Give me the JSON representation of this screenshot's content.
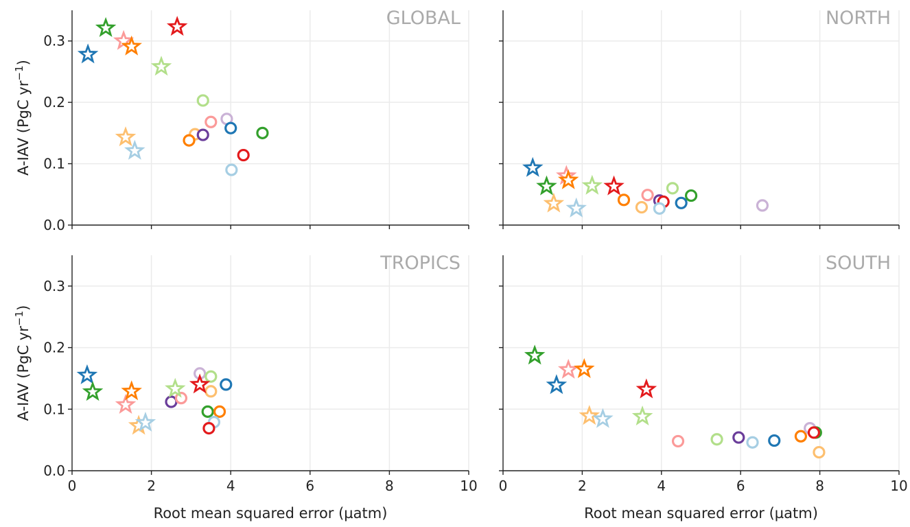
{
  "chart_data": {
    "type": "scatter",
    "xlabel": "Root mean squared error (µatm)",
    "ylabel_main": "A-IAV (PgC yr",
    "ylabel_sup": "−1",
    "ylabel_end": ")",
    "xlim": [
      0,
      10
    ],
    "ylim": [
      0,
      0.35
    ],
    "xticks": [
      "0",
      "2",
      "4",
      "6",
      "8",
      "10"
    ],
    "yticks": [
      "0.0",
      "0.1",
      "0.2",
      "0.3"
    ],
    "grid": true,
    "colors": [
      "#1f77b4",
      "#33a02c",
      "#fb9a99",
      "#ff7f00",
      "#b2df8a",
      "#e31a1c",
      "#fdbf6f",
      "#a6cee3",
      "#6a3d9a",
      "#cab2d6"
    ],
    "panels": [
      {
        "title": "GLOBAL",
        "stars": [
          {
            "x": 0.4,
            "y": 0.278,
            "c": 0
          },
          {
            "x": 0.85,
            "y": 0.321,
            "c": 1
          },
          {
            "x": 1.3,
            "y": 0.3,
            "c": 2
          },
          {
            "x": 1.5,
            "y": 0.291,
            "c": 3
          },
          {
            "x": 2.25,
            "y": 0.258,
            "c": 4
          },
          {
            "x": 2.65,
            "y": 0.323,
            "c": 5
          },
          {
            "x": 1.35,
            "y": 0.143,
            "c": 6
          },
          {
            "x": 1.58,
            "y": 0.121,
            "c": 7
          }
        ],
        "circles": [
          {
            "x": 3.3,
            "y": 0.203,
            "c": 4
          },
          {
            "x": 3.9,
            "y": 0.173,
            "c": 9
          },
          {
            "x": 3.5,
            "y": 0.168,
            "c": 2
          },
          {
            "x": 4.0,
            "y": 0.158,
            "c": 0
          },
          {
            "x": 4.8,
            "y": 0.15,
            "c": 1
          },
          {
            "x": 3.1,
            "y": 0.148,
            "c": 6
          },
          {
            "x": 3.3,
            "y": 0.147,
            "c": 8
          },
          {
            "x": 2.95,
            "y": 0.138,
            "c": 3
          },
          {
            "x": 4.32,
            "y": 0.114,
            "c": 5
          },
          {
            "x": 4.02,
            "y": 0.09,
            "c": 7
          }
        ]
      },
      {
        "title": "NORTH",
        "stars": [
          {
            "x": 0.75,
            "y": 0.093,
            "c": 0
          },
          {
            "x": 1.1,
            "y": 0.063,
            "c": 1
          },
          {
            "x": 1.6,
            "y": 0.08,
            "c": 2
          },
          {
            "x": 1.65,
            "y": 0.073,
            "c": 3
          },
          {
            "x": 2.25,
            "y": 0.064,
            "c": 4
          },
          {
            "x": 2.8,
            "y": 0.063,
            "c": 5
          },
          {
            "x": 1.28,
            "y": 0.035,
            "c": 6
          },
          {
            "x": 1.85,
            "y": 0.027,
            "c": 7
          }
        ],
        "circles": [
          {
            "x": 3.05,
            "y": 0.041,
            "c": 3
          },
          {
            "x": 3.65,
            "y": 0.049,
            "c": 2
          },
          {
            "x": 3.5,
            "y": 0.029,
            "c": 6
          },
          {
            "x": 3.95,
            "y": 0.04,
            "c": 8
          },
          {
            "x": 4.05,
            "y": 0.038,
            "c": 5
          },
          {
            "x": 3.95,
            "y": 0.027,
            "c": 7
          },
          {
            "x": 4.28,
            "y": 0.06,
            "c": 4
          },
          {
            "x": 4.5,
            "y": 0.036,
            "c": 0
          },
          {
            "x": 4.75,
            "y": 0.048,
            "c": 1
          },
          {
            "x": 6.55,
            "y": 0.032,
            "c": 9
          }
        ]
      },
      {
        "title": "TROPICS",
        "stars": [
          {
            "x": 0.38,
            "y": 0.155,
            "c": 0
          },
          {
            "x": 0.52,
            "y": 0.128,
            "c": 1
          },
          {
            "x": 1.35,
            "y": 0.107,
            "c": 2
          },
          {
            "x": 1.5,
            "y": 0.129,
            "c": 3
          },
          {
            "x": 2.6,
            "y": 0.133,
            "c": 4
          },
          {
            "x": 3.22,
            "y": 0.14,
            "c": 5
          },
          {
            "x": 1.68,
            "y": 0.073,
            "c": 6
          },
          {
            "x": 1.85,
            "y": 0.078,
            "c": 7
          }
        ],
        "circles": [
          {
            "x": 2.5,
            "y": 0.112,
            "c": 8
          },
          {
            "x": 2.75,
            "y": 0.118,
            "c": 2
          },
          {
            "x": 3.22,
            "y": 0.158,
            "c": 9
          },
          {
            "x": 3.5,
            "y": 0.153,
            "c": 4
          },
          {
            "x": 3.5,
            "y": 0.129,
            "c": 6
          },
          {
            "x": 3.88,
            "y": 0.14,
            "c": 0
          },
          {
            "x": 3.42,
            "y": 0.096,
            "c": 1
          },
          {
            "x": 3.72,
            "y": 0.096,
            "c": 3
          },
          {
            "x": 3.58,
            "y": 0.079,
            "c": 7
          },
          {
            "x": 3.45,
            "y": 0.069,
            "c": 5
          }
        ]
      },
      {
        "title": "SOUTH",
        "stars": [
          {
            "x": 0.8,
            "y": 0.187,
            "c": 1
          },
          {
            "x": 1.35,
            "y": 0.139,
            "c": 0
          },
          {
            "x": 1.65,
            "y": 0.164,
            "c": 2
          },
          {
            "x": 2.05,
            "y": 0.165,
            "c": 3
          },
          {
            "x": 3.62,
            "y": 0.132,
            "c": 5
          },
          {
            "x": 2.18,
            "y": 0.089,
            "c": 6
          },
          {
            "x": 2.52,
            "y": 0.084,
            "c": 7
          },
          {
            "x": 3.52,
            "y": 0.088,
            "c": 4
          }
        ],
        "circles": [
          {
            "x": 4.42,
            "y": 0.048,
            "c": 2
          },
          {
            "x": 5.4,
            "y": 0.051,
            "c": 4
          },
          {
            "x": 5.95,
            "y": 0.054,
            "c": 8
          },
          {
            "x": 6.3,
            "y": 0.046,
            "c": 7
          },
          {
            "x": 6.85,
            "y": 0.049,
            "c": 0
          },
          {
            "x": 7.52,
            "y": 0.056,
            "c": 3
          },
          {
            "x": 7.75,
            "y": 0.069,
            "c": 9
          },
          {
            "x": 7.9,
            "y": 0.062,
            "c": 1
          },
          {
            "x": 7.85,
            "y": 0.062,
            "c": 5
          },
          {
            "x": 7.98,
            "y": 0.03,
            "c": 6
          }
        ]
      }
    ]
  }
}
